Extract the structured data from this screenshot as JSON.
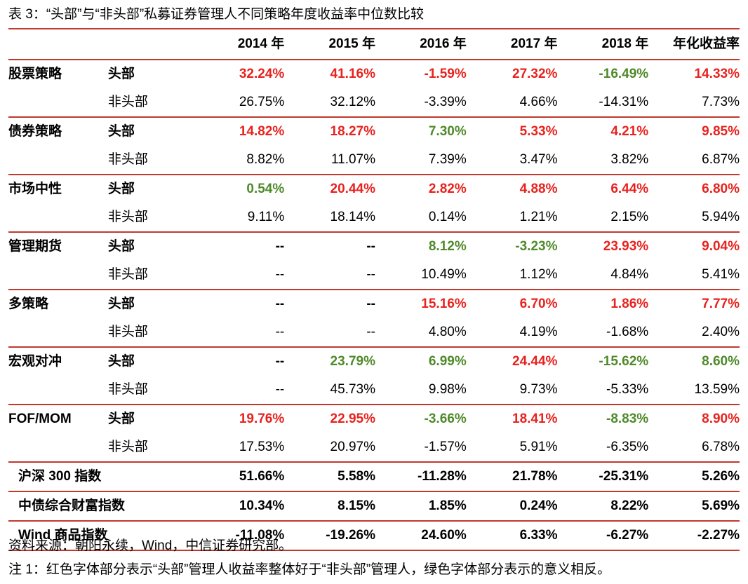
{
  "caption": "表 3：“头部”与“非头部”私募证券管理人不同策略年度收益率中位数比较",
  "columns": [
    "2014 年",
    "2015 年",
    "2016 年",
    "2017 年",
    "2018 年",
    "年化收益率"
  ],
  "colors": {
    "red": "#e8221e",
    "green": "#4f8a2a",
    "rule": "#c0392b"
  },
  "groups": [
    {
      "name": "股票策略",
      "head": {
        "label": "头部",
        "values": [
          "32.24%",
          "41.16%",
          "-1.59%",
          "27.32%",
          "-16.49%",
          "14.33%"
        ],
        "tones": [
          "red",
          "red",
          "red",
          "red",
          "green",
          "red"
        ]
      },
      "nonhead": {
        "label": "非头部",
        "values": [
          "26.75%",
          "32.12%",
          "-3.39%",
          "4.66%",
          "-14.31%",
          "7.73%"
        ]
      }
    },
    {
      "name": "债券策略",
      "head": {
        "label": "头部",
        "values": [
          "14.82%",
          "18.27%",
          "7.30%",
          "5.33%",
          "4.21%",
          "9.85%"
        ],
        "tones": [
          "red",
          "red",
          "green",
          "red",
          "red",
          "red"
        ]
      },
      "nonhead": {
        "label": "非头部",
        "values": [
          "8.82%",
          "11.07%",
          "7.39%",
          "3.47%",
          "3.82%",
          "6.87%"
        ]
      }
    },
    {
      "name": "市场中性",
      "head": {
        "label": "头部",
        "values": [
          "0.54%",
          "20.44%",
          "2.82%",
          "4.88%",
          "6.44%",
          "6.80%"
        ],
        "tones": [
          "green",
          "red",
          "red",
          "red",
          "red",
          "red"
        ]
      },
      "nonhead": {
        "label": "非头部",
        "values": [
          "9.11%",
          "18.14%",
          "0.14%",
          "1.21%",
          "2.15%",
          "5.94%"
        ]
      }
    },
    {
      "name": "管理期货",
      "head": {
        "label": "头部",
        "values": [
          "--",
          "--",
          "8.12%",
          "-3.23%",
          "23.93%",
          "9.04%"
        ],
        "tones": [
          "",
          "",
          "green",
          "green",
          "red",
          "red"
        ]
      },
      "nonhead": {
        "label": "非头部",
        "values": [
          "--",
          "--",
          "10.49%",
          "1.12%",
          "4.84%",
          "5.41%"
        ]
      }
    },
    {
      "name": "多策略",
      "head": {
        "label": "头部",
        "values": [
          "--",
          "--",
          "15.16%",
          "6.70%",
          "1.86%",
          "7.77%"
        ],
        "tones": [
          "",
          "",
          "red",
          "red",
          "red",
          "red"
        ]
      },
      "nonhead": {
        "label": "非头部",
        "values": [
          "--",
          "--",
          "4.80%",
          "4.19%",
          "-1.68%",
          "2.40%"
        ]
      }
    },
    {
      "name": "宏观对冲",
      "head": {
        "label": "头部",
        "values": [
          "--",
          "23.79%",
          "6.99%",
          "24.44%",
          "-15.62%",
          "8.60%"
        ],
        "tones": [
          "",
          "green",
          "green",
          "red",
          "green",
          "green"
        ]
      },
      "nonhead": {
        "label": "非头部",
        "values": [
          "--",
          "45.73%",
          "9.98%",
          "9.73%",
          "-5.33%",
          "13.59%"
        ]
      }
    },
    {
      "name": "FOF/MOM",
      "head": {
        "label": "头部",
        "values": [
          "19.76%",
          "22.95%",
          "-3.66%",
          "18.41%",
          "-8.83%",
          "8.90%"
        ],
        "tones": [
          "red",
          "red",
          "green",
          "red",
          "green",
          "red"
        ]
      },
      "nonhead": {
        "label": "非头部",
        "values": [
          "17.53%",
          "20.97%",
          "-1.57%",
          "5.91%",
          "-6.35%",
          "6.78%"
        ]
      }
    }
  ],
  "indices": [
    {
      "name": "沪深 300 指数",
      "values": [
        "51.66%",
        "5.58%",
        "-11.28%",
        "21.78%",
        "-25.31%",
        "5.26%"
      ]
    },
    {
      "name": "中债综合财富指数",
      "values": [
        "10.34%",
        "8.15%",
        "1.85%",
        "0.24%",
        "8.22%",
        "5.69%"
      ]
    },
    {
      "name": "Wind 商品指数",
      "values": [
        "-11.08%",
        "-19.26%",
        "24.60%",
        "6.33%",
        "-6.27%",
        "-2.27%"
      ]
    }
  ],
  "source": "资料来源：朝阳永续，Wind，中信证券研究部。",
  "note": "注 1：红色字体部分表示“头部”管理人收益率整体好于“非头部”管理人，绿色字体部分表示的意义相反。"
}
